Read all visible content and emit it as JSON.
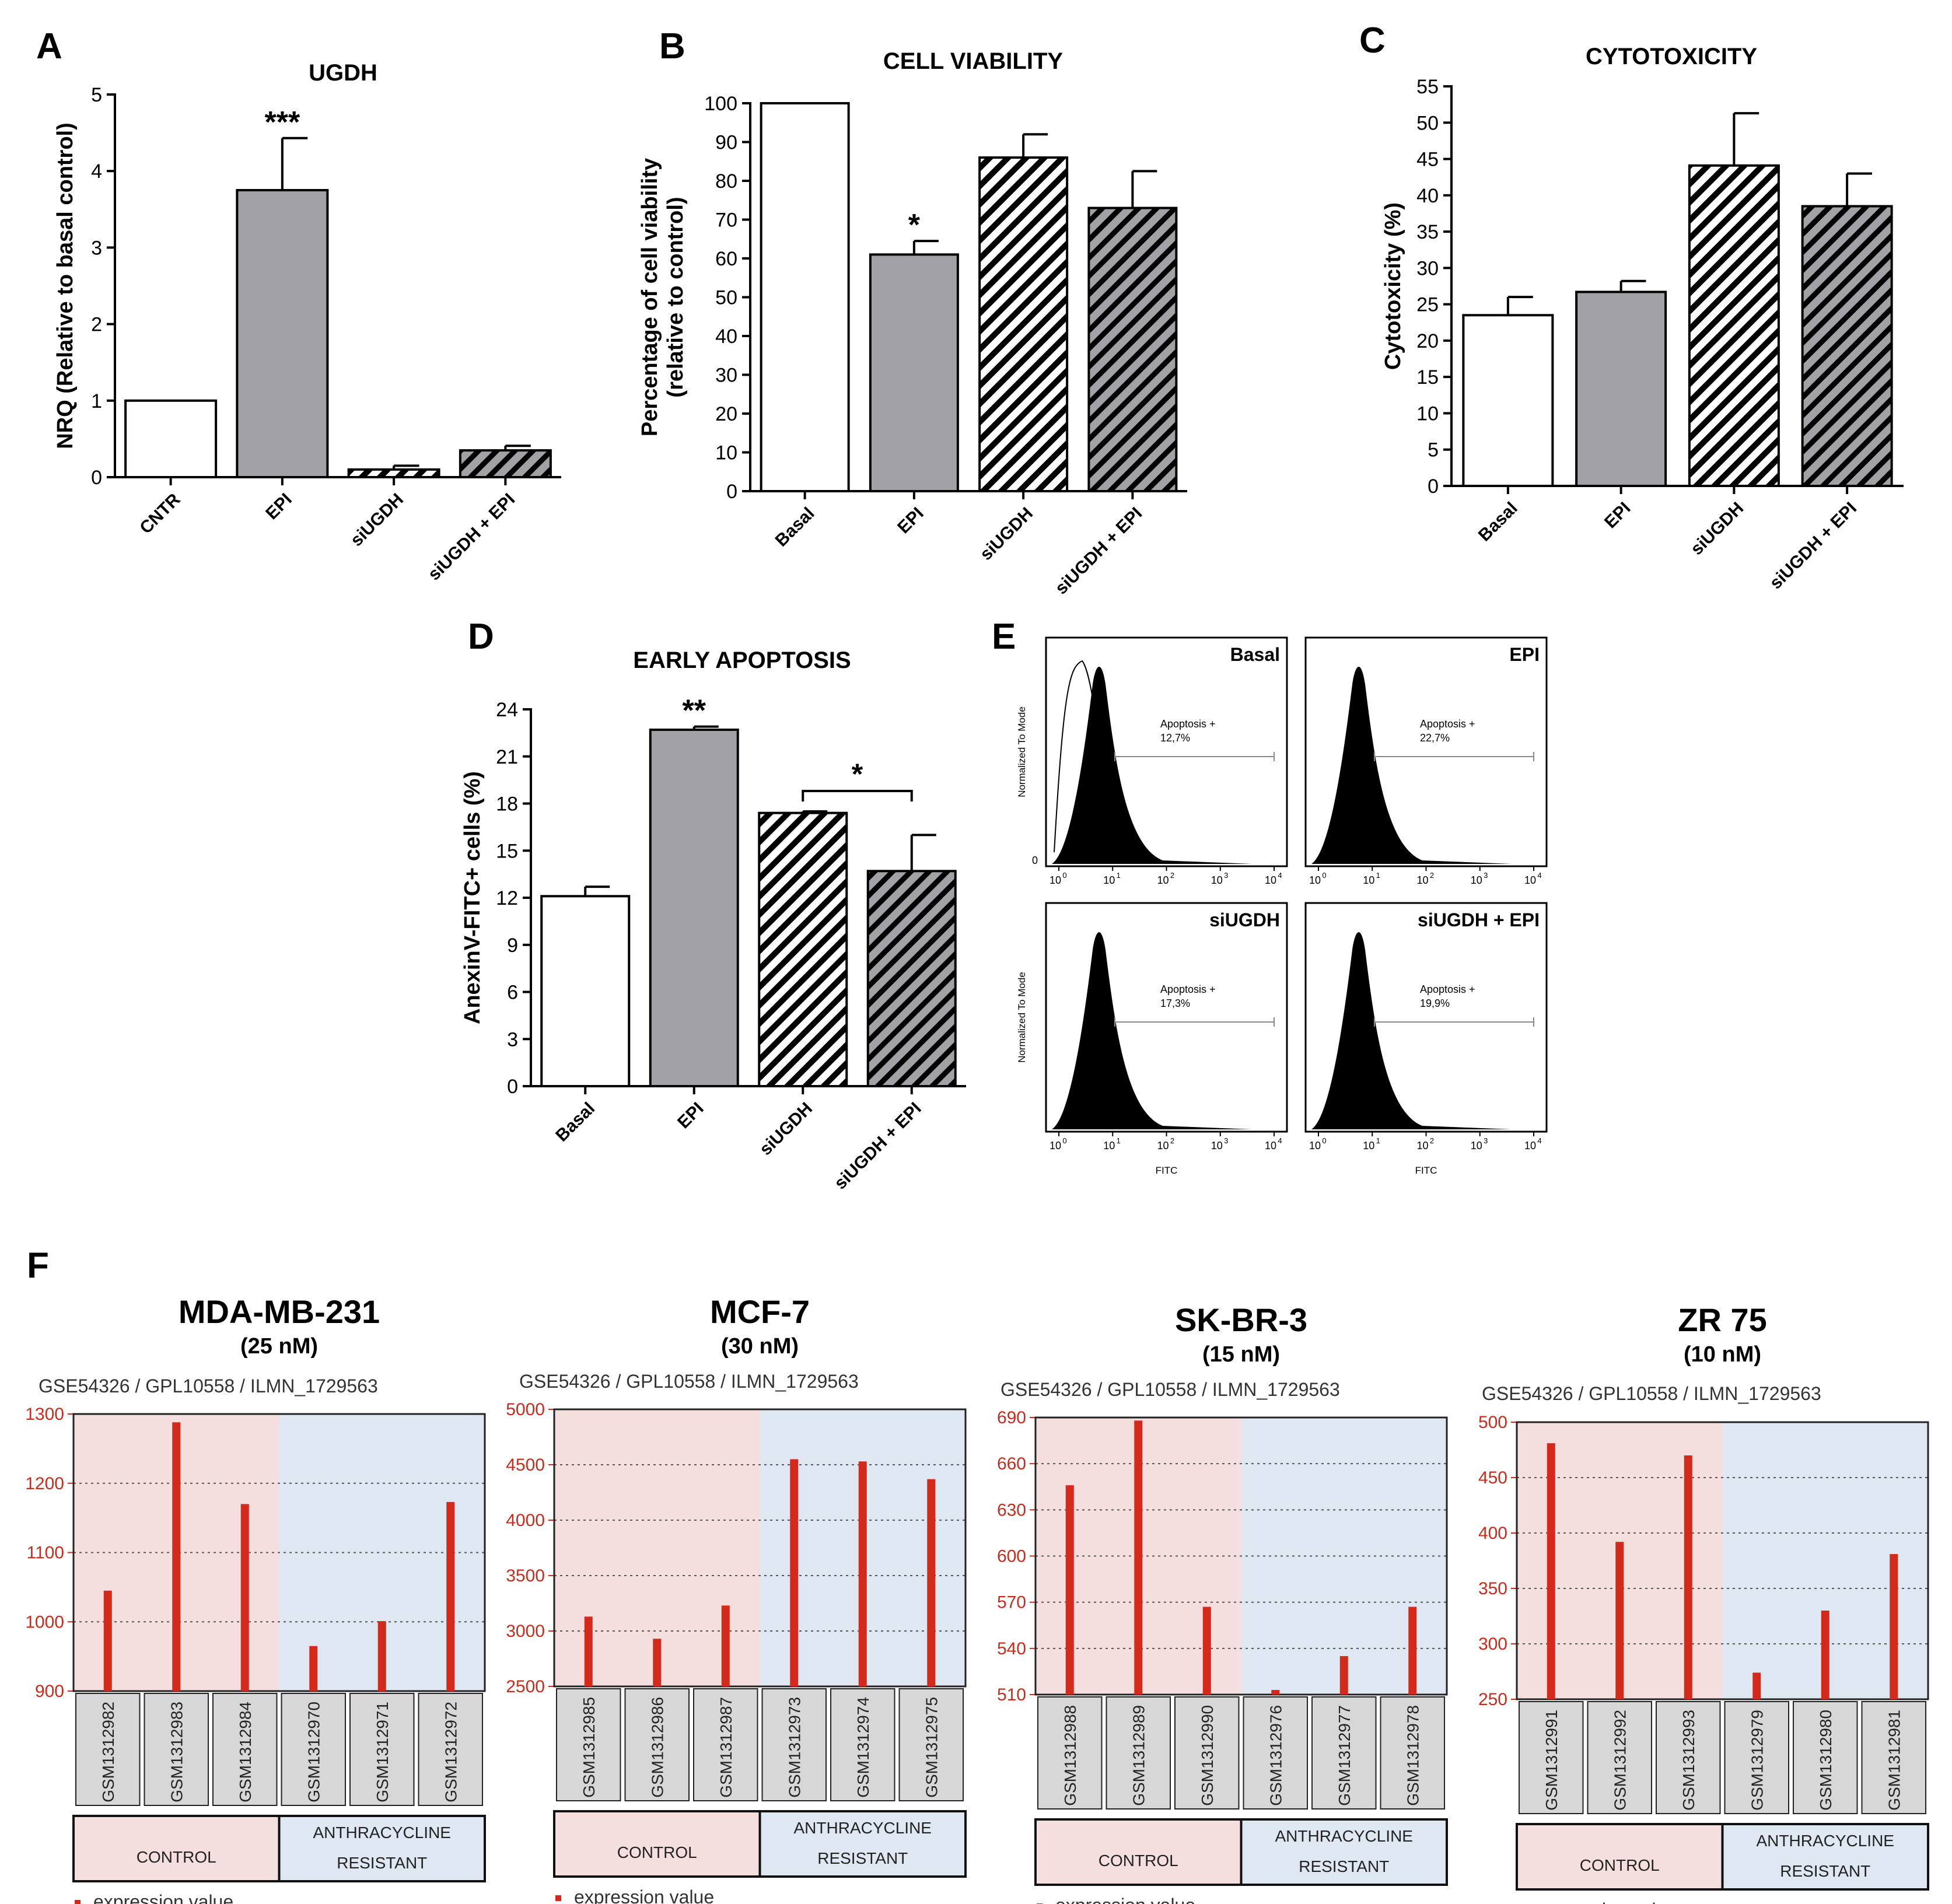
{
  "colors": {
    "bar_white": "#ffffff",
    "bar_gray": "#a2a1a6",
    "hatch_white_bg": "#ffffff",
    "hatch_gray_bg": "#a2a1a6",
    "axis": "#000000",
    "geo_red": "#d42a1c",
    "geo_control_bg": "#f5dede",
    "geo_resistant_bg": "#dfe8f2",
    "geo_label_bg": "#d7d7d7",
    "geo_axis_red": "#cc2a1a"
  },
  "panels": {
    "A": {
      "letter": "A"
    },
    "B": {
      "letter": "B"
    },
    "C": {
      "letter": "C"
    },
    "D": {
      "letter": "D"
    },
    "E": {
      "letter": "E"
    },
    "F": {
      "letter": "F"
    }
  },
  "chart_data": [
    {
      "id": "A",
      "type": "bar",
      "title": "UGDH",
      "ylabel": "NRQ (Relative to basal control)",
      "categories": [
        "CNTR",
        "EPI",
        "siUGDH",
        "siUGDH + EPI"
      ],
      "values": [
        1.0,
        3.75,
        0.1,
        0.35
      ],
      "errors": [
        0,
        0.68,
        0.05,
        0.06
      ],
      "patterns": [
        "white",
        "gray",
        "hatch-white",
        "hatch-gray"
      ],
      "annotations": [
        {
          "category": "EPI",
          "text": "***"
        }
      ],
      "ylim": [
        0,
        5
      ],
      "yticks": [
        0,
        1,
        2,
        3,
        4,
        5
      ]
    },
    {
      "id": "B",
      "type": "bar",
      "title": "CELL VIABILITY",
      "ylabel": "Percentage of cell viability\n(relative to control)",
      "categories": [
        "Basal",
        "EPI",
        "siUGDH",
        "siUGDH + EPI"
      ],
      "values": [
        100,
        61,
        86,
        73
      ],
      "errors": [
        0,
        3.5,
        6,
        9.5
      ],
      "patterns": [
        "white",
        "gray",
        "hatch-white",
        "hatch-gray"
      ],
      "annotations": [
        {
          "category": "EPI",
          "text": "*"
        }
      ],
      "ylim": [
        0,
        100
      ],
      "yticks": [
        0,
        10,
        20,
        30,
        40,
        50,
        60,
        70,
        80,
        90,
        100
      ]
    },
    {
      "id": "C",
      "type": "bar",
      "title": "CYTOTOXICITY",
      "ylabel": "Cytotoxicity (%)",
      "categories": [
        "Basal",
        "EPI",
        "siUGDH",
        "siUGDH + EPI"
      ],
      "values": [
        23.5,
        26.7,
        44.1,
        38.5
      ],
      "errors": [
        2.5,
        1.5,
        7.2,
        4.5
      ],
      "patterns": [
        "white",
        "gray",
        "hatch-white",
        "hatch-gray"
      ],
      "annotations": [],
      "ylim": [
        0,
        55
      ],
      "yticks": [
        0,
        5,
        10,
        15,
        20,
        25,
        30,
        35,
        40,
        45,
        50,
        55
      ]
    },
    {
      "id": "D",
      "type": "bar",
      "title": "EARLY APOPTOSIS",
      "ylabel": "AnexinV-FITC+ cells (%)",
      "categories": [
        "Basal",
        "EPI",
        "siUGDH",
        "siUGDH + EPI"
      ],
      "values": [
        12.1,
        22.7,
        17.4,
        13.7
      ],
      "errors": [
        0.6,
        0.2,
        0.1,
        2.3
      ],
      "patterns": [
        "white",
        "gray",
        "hatch-white",
        "hatch-gray"
      ],
      "annotations": [
        {
          "category": "EPI",
          "text": "**"
        }
      ],
      "bracket": {
        "from": "siUGDH",
        "to": "siUGDH + EPI",
        "text": "*"
      },
      "ylim": [
        0,
        24
      ],
      "yticks": [
        0,
        3,
        6,
        9,
        12,
        15,
        18,
        21,
        24
      ]
    },
    {
      "id": "E",
      "type": "histogram",
      "ylabel": "Normalized To Mode",
      "xlabel": "FITC",
      "xtick_labels": [
        "10",
        "10",
        "10",
        "10",
        "10"
      ],
      "xtick_exps": [
        "0",
        "1",
        "2",
        "3",
        "4"
      ],
      "zero_label": "0",
      "subplots": [
        {
          "label": "Basal",
          "gate_label": "Apoptosis +",
          "gate_value": "12,7%",
          "overlay": true
        },
        {
          "label": "EPI",
          "gate_label": "Apoptosis +",
          "gate_value": "22,7%",
          "overlay": false
        },
        {
          "label": "siUGDH",
          "gate_label": "Apoptosis +",
          "gate_value": "17,3%",
          "overlay": false
        },
        {
          "label": "siUGDH + EPI",
          "gate_label": "Apoptosis +",
          "gate_value": "19,9%",
          "overlay": false
        }
      ]
    },
    {
      "id": "F1",
      "type": "bar",
      "title": "MDA-MB-231",
      "subtitle": "(25 nM)",
      "header": "GSE54326 / GPL10558 / ILMN_1729563",
      "categories": [
        "GSM1312982",
        "GSM1312983",
        "GSM1312984",
        "GSM1312970",
        "GSM1312971",
        "GSM1312972"
      ],
      "values": [
        1045,
        1288,
        1170,
        965,
        1001,
        1173
      ],
      "ylim": [
        900,
        1300
      ],
      "yticks": [
        900,
        1000,
        1100,
        1200,
        1300
      ],
      "groups": [
        {
          "label": "CONTROL",
          "count": 3
        },
        {
          "label": "ANTHRACYCLINE RESISTANT",
          "line1": "ANTHRACYCLINE",
          "line2": "RESISTANT",
          "count": 3
        }
      ],
      "legend": "expression value"
    },
    {
      "id": "F2",
      "type": "bar",
      "title": "MCF-7",
      "subtitle": "(30 nM)",
      "header": "GSE54326 / GPL10558 / ILMN_1729563",
      "categories": [
        "GSM1312985",
        "GSM1312986",
        "GSM1312987",
        "GSM1312973",
        "GSM1312974",
        "GSM1312975"
      ],
      "values": [
        3130,
        2930,
        3230,
        4550,
        4530,
        4370
      ],
      "ylim": [
        2500,
        5000
      ],
      "yticks": [
        2500,
        3000,
        3500,
        4000,
        4500,
        5000
      ],
      "groups": [
        {
          "label": "CONTROL",
          "count": 3
        },
        {
          "label": "ANTHRACYCLINE RESISTANT",
          "line1": "ANTHRACYCLINE",
          "line2": "RESISTANT",
          "count": 3
        }
      ],
      "legend": "expression value"
    },
    {
      "id": "F3",
      "type": "bar",
      "title": "SK-BR-3",
      "subtitle": "(15 nM)",
      "header": "GSE54326 / GPL10558 / ILMN_1729563",
      "categories": [
        "GSM1312988",
        "GSM1312989",
        "GSM1312990",
        "GSM1312976",
        "GSM1312977",
        "GSM1312978"
      ],
      "values": [
        646,
        688,
        567,
        513,
        535,
        567
      ],
      "ylim": [
        510,
        690
      ],
      "yticks": [
        510,
        540,
        570,
        600,
        630,
        660,
        690
      ],
      "groups": [
        {
          "label": "CONTROL",
          "count": 3
        },
        {
          "label": "ANTHRACYCLINE RESISTANT",
          "line1": "ANTHRACYCLINE",
          "line2": "RESISTANT",
          "count": 3
        }
      ],
      "legend": "expression value"
    },
    {
      "id": "F4",
      "type": "bar",
      "title": "ZR 75",
      "subtitle": "(10 nM)",
      "header": "GSE54326 / GPL10558 / ILMN_1729563",
      "categories": [
        "GSM1312991",
        "GSM1312992",
        "GSM1312993",
        "GSM1312979",
        "GSM1312980",
        "GSM1312981"
      ],
      "values": [
        481,
        392,
        470,
        274,
        330,
        381
      ],
      "ylim": [
        250,
        500
      ],
      "yticks": [
        250,
        300,
        350,
        400,
        450,
        500
      ],
      "groups": [
        {
          "label": "CONTROL",
          "count": 3
        },
        {
          "label": "ANTHRACYCLINE RESISTANT",
          "line1": "ANTHRACYCLINE",
          "line2": "RESISTANT",
          "count": 3
        }
      ],
      "legend": "expression value"
    }
  ]
}
